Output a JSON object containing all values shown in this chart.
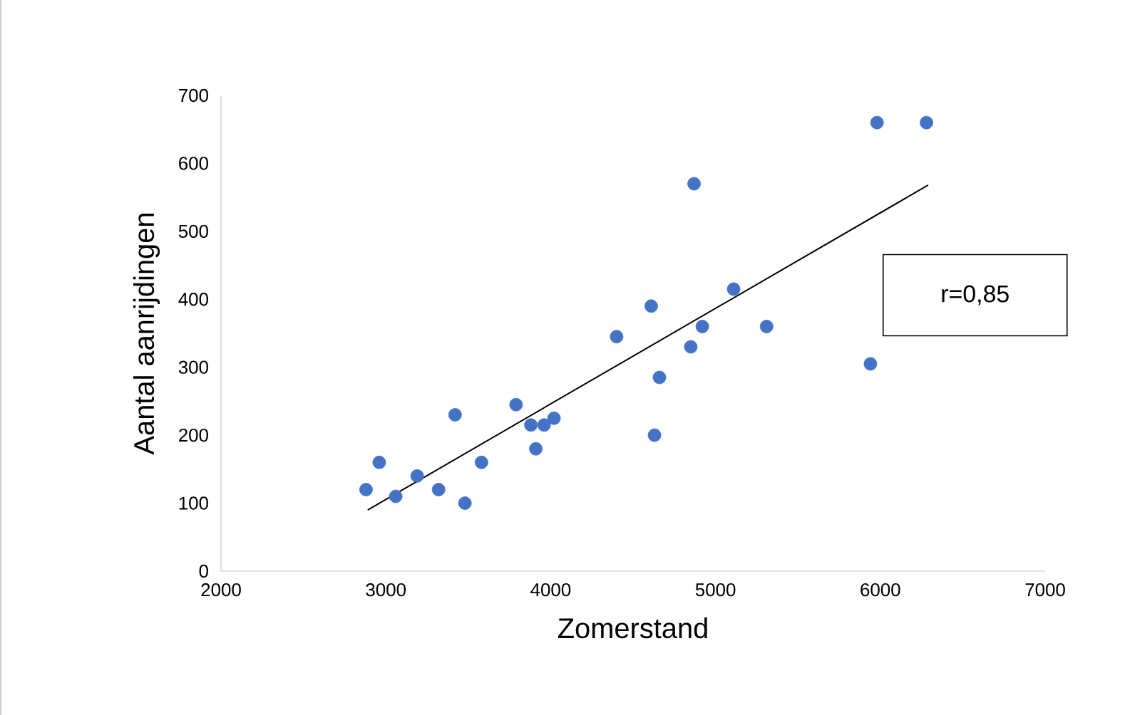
{
  "chart_data": {
    "type": "scatter",
    "xlabel": "Zomerstand",
    "ylabel": "Aantal aanrijdingen",
    "xlim": [
      2000,
      7000
    ],
    "ylim": [
      0,
      700
    ],
    "xticks": [
      2000,
      3000,
      4000,
      5000,
      6000,
      7000
    ],
    "yticks": [
      0,
      100,
      200,
      300,
      400,
      500,
      600,
      700
    ],
    "grid": false,
    "annotations": [
      "r=0,85"
    ],
    "series": [
      {
        "color": "#4472c4",
        "marker": "circle",
        "x": [
          2880,
          2960,
          3060,
          3190,
          3320,
          3420,
          3480,
          3580,
          3790,
          3880,
          3910,
          3960,
          4020,
          4400,
          4610,
          4630,
          4660,
          4850,
          4870,
          4920,
          5110,
          5310,
          5940,
          5980,
          6280
        ],
        "values": [
          120,
          160,
          110,
          140,
          120,
          230,
          100,
          160,
          245,
          215,
          180,
          215,
          225,
          345,
          390,
          200,
          285,
          330,
          570,
          360,
          415,
          360,
          305,
          660,
          660
        ]
      },
      {
        "type": "line",
        "color": "#000000",
        "marker": "none",
        "line_style": "solid",
        "x": [
          2890,
          6290
        ],
        "values": [
          90,
          568
        ]
      }
    ]
  }
}
